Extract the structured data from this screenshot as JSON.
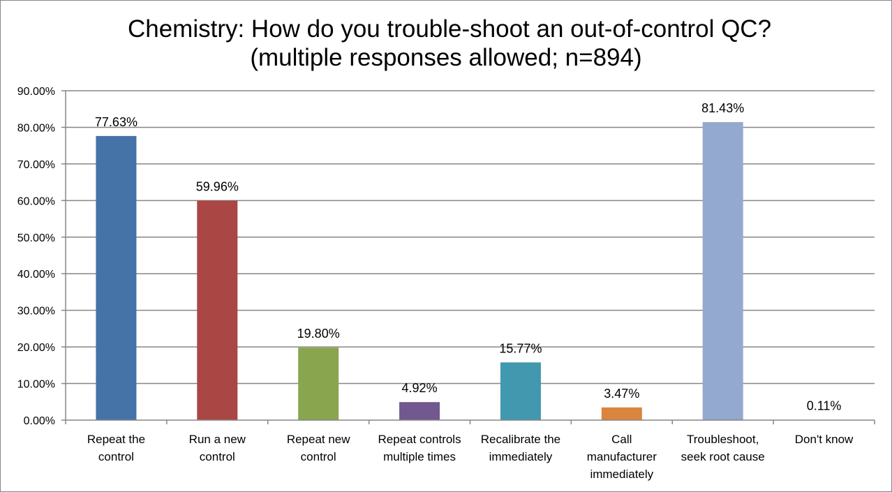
{
  "chart_data": {
    "type": "bar",
    "title": "Chemistry: How do you trouble-shoot an out-of-control QC?",
    "subtitle": "(multiple responses allowed; n=894)",
    "xlabel": "",
    "ylabel": "",
    "ylim": [
      0,
      90
    ],
    "y_ticks": [
      0,
      10,
      20,
      30,
      40,
      50,
      60,
      70,
      80,
      90
    ],
    "y_tick_labels": [
      "0.00%",
      "10.00%",
      "20.00%",
      "30.00%",
      "40.00%",
      "50.00%",
      "60.00%",
      "70.00%",
      "80.00%",
      "90.00%"
    ],
    "grid": true,
    "legend": "none",
    "categories": [
      [
        "Repeat the",
        "control"
      ],
      [
        "Run a new",
        "control"
      ],
      [
        "Repeat new",
        "control"
      ],
      [
        "Repeat controls",
        "multiple times"
      ],
      [
        "Recalibrate the",
        "immediately"
      ],
      [
        "Call",
        "manufacturer",
        "immediately"
      ],
      [
        "Troubleshoot,",
        "seek root cause"
      ],
      [
        "Don't know"
      ]
    ],
    "values": [
      77.63,
      59.96,
      19.8,
      4.92,
      15.77,
      3.47,
      81.43,
      0.11
    ],
    "data_labels": [
      "77.63%",
      "59.96%",
      "19.80%",
      "4.92%",
      "15.77%",
      "3.47%",
      "81.43%",
      "0.11%"
    ],
    "colors": [
      "#4572A7",
      "#AA4643",
      "#89A54E",
      "#71588F",
      "#4198AF",
      "#DB843D",
      "#93A9CF",
      "#B9CD96"
    ]
  }
}
